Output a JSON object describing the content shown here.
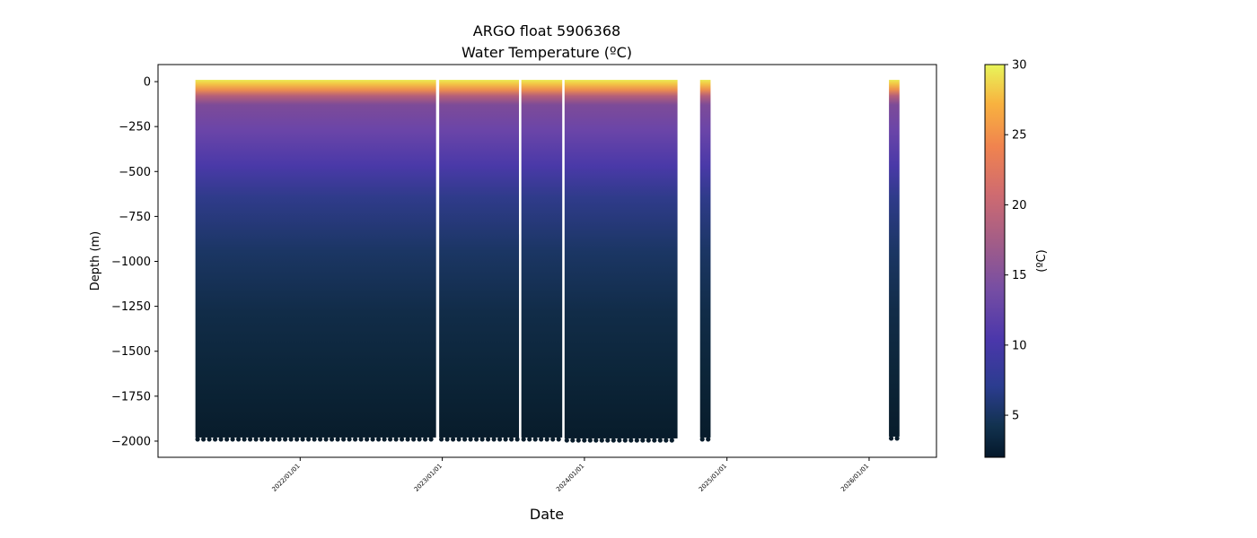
{
  "chart_data": {
    "type": "scatter",
    "title": "ARGO float 5906368",
    "subtitle": "Water Temperature (ºC)",
    "xlabel": "Date",
    "ylabel": "Depth (m)",
    "x_tick_labels": [
      "2022/01/01",
      "2023/01/01",
      "2024/01/01",
      "2025/01/01",
      "2026/01/01"
    ],
    "y_ticks": [
      0,
      -250,
      -500,
      -750,
      -1000,
      -1250,
      -1500,
      -1750,
      -2000
    ],
    "y_tick_labels": [
      "0",
      "−250",
      "−500",
      "−750",
      "−1000",
      "−1250",
      "−1500",
      "−1750",
      "−2000"
    ],
    "xlim": [
      "2021-01-01",
      "2026-06-23"
    ],
    "ylim": [
      -2090,
      95
    ],
    "colorbar": {
      "label": "(ºC)",
      "ticks": [
        5,
        10,
        15,
        20,
        25,
        30
      ],
      "tick_labels": [
        "5",
        "10",
        "15",
        "20",
        "25",
        "30"
      ],
      "range": [
        2,
        30
      ],
      "colormap": "thermal"
    },
    "profile_groups": [
      {
        "start": "2021-04-07",
        "end": "2022-12-16",
        "max_depth": -1980
      },
      {
        "start": "2022-12-24",
        "end": "2023-07-17",
        "max_depth": -1980
      },
      {
        "start": "2023-07-23",
        "end": "2023-11-05",
        "max_depth": -1980
      },
      {
        "start": "2023-11-11",
        "end": "2024-08-27",
        "max_depth": -1985
      },
      {
        "start": "2024-10-24",
        "end": "2024-11-20",
        "max_depth": -1980
      },
      {
        "start": "2026-02-21",
        "end": "2026-03-20",
        "max_depth": -1975
      }
    ],
    "gaps": [
      {
        "date": "2023-07-20",
        "from_depth": 0,
        "to_depth": -830
      },
      {
        "date": "2022-12-20",
        "from_depth": -1110,
        "to_depth": -2000
      }
    ],
    "isotherm_depths": {
      "surface_warm_above_25C": -50,
      "thermocline_10C": -300,
      "5C": -750
    },
    "grid": false,
    "legend": "none"
  }
}
